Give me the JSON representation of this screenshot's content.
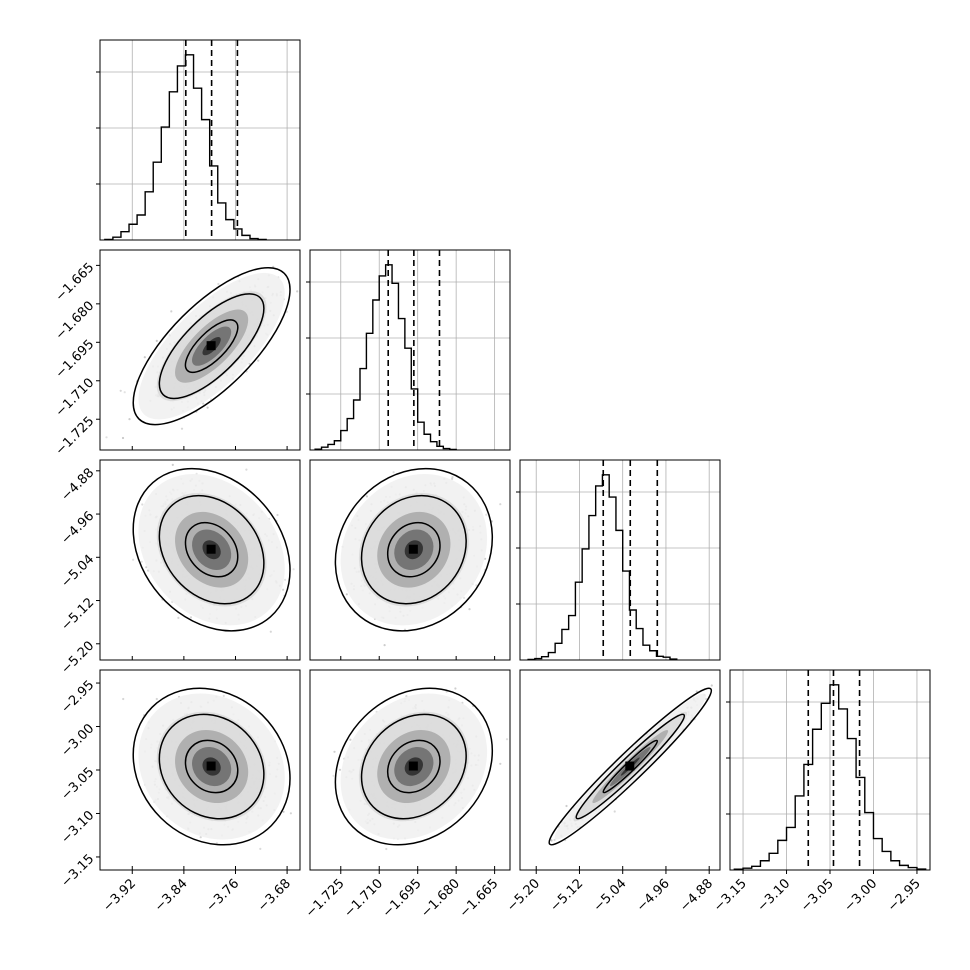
{
  "figure": {
    "name": "corner-plot",
    "background": "#ffffff",
    "line_color": "#000000",
    "grid_color": "#b0b0b0"
  },
  "chart_data": [
    {
      "type": "histogram",
      "panel": "hist-p1",
      "row": 0,
      "col": 0,
      "bins": {
        "start": -3.9625,
        "width": 0.0125,
        "counts": [
          0.3,
          1.5,
          4.5,
          8.5,
          13.5,
          26,
          42,
          61,
          80,
          94,
          100,
          82,
          65,
          40,
          20,
          11,
          6,
          2.5,
          0.8,
          0.3
        ]
      },
      "xlim": [
        -3.97,
        -3.66
      ],
      "ymax": 108,
      "quantiles": [
        -3.837,
        -3.797,
        -3.757
      ],
      "xticks": [
        "-3.92",
        "-3.84",
        "-3.76",
        "-3.68"
      ]
    },
    {
      "type": "histogram",
      "panel": "hist-p2",
      "row": 1,
      "col": 1,
      "bins": {
        "start": -1.735,
        "width": 0.0025,
        "counts": [
          0.4,
          1.5,
          3,
          5,
          10.5,
          17,
          27,
          44,
          63,
          81,
          94,
          100,
          90,
          71,
          55,
          33,
          15,
          8.5,
          4.5,
          2,
          0.8,
          0.3
        ]
      },
      "xlim": [
        -1.737,
        -1.659
      ],
      "ymax": 108,
      "quantiles": [
        -1.7065,
        -1.6965,
        -1.6865
      ],
      "xticks": [
        "-1.725",
        "-1.710",
        "-1.695",
        "-1.680",
        "-1.665"
      ],
      "xlim_shown": [
        -1.737,
        -1.659
      ]
    },
    {
      "type": "histogram",
      "panel": "hist-p3",
      "row": 2,
      "col": 2,
      "bins": {
        "start": -5.215,
        "width": 0.0125,
        "counts": [
          0.3,
          0.8,
          1.8,
          4,
          9,
          16.5,
          24,
          42,
          60,
          78,
          94,
          100,
          88,
          70,
          48,
          27,
          17,
          8,
          5,
          2,
          1.5,
          0.5
        ]
      },
      "xlim": [
        -5.23,
        -4.86
      ],
      "ymax": 108,
      "quantiles": [
        -5.076,
        -5.026,
        -4.976
      ],
      "xticks": [
        "-5.20",
        "-5.12",
        "-5.04",
        "-4.96",
        "-4.88"
      ]
    },
    {
      "type": "histogram",
      "panel": "hist-p4",
      "row": 3,
      "col": 3,
      "bins": {
        "start": -3.16,
        "width": 0.01,
        "counts": [
          0.4,
          1,
          2,
          5,
          9,
          16,
          23,
          40,
          57,
          76,
          90,
          100,
          87,
          71,
          50,
          31,
          17,
          10,
          5,
          2.5,
          1.3,
          0.5
        ]
      },
      "xlim": [
        -3.165,
        -2.935
      ],
      "ymax": 108,
      "quantiles": [
        -3.075,
        -3.046,
        -3.016
      ],
      "xticks": [
        "-3.15",
        "-3.10",
        "-3.05",
        "-3.00",
        "-2.95"
      ]
    },
    {
      "type": "scatter-density",
      "panel": "joint-p1-p2",
      "row": 1,
      "col": 0,
      "x_param": 0,
      "y_param": 1,
      "center": [
        -3.797,
        -1.6965
      ],
      "sd": [
        0.0405,
        0.0102
      ],
      "rho": 0.72,
      "n_points": 900,
      "levels": [
        "39.3%",
        "86.5%",
        "98.9%"
      ]
    },
    {
      "type": "scatter-density",
      "panel": "joint-p1-p3",
      "row": 2,
      "col": 0,
      "x_param": 0,
      "y_param": 2,
      "center": [
        -3.797,
        -5.026
      ],
      "sd": [
        0.0405,
        0.05
      ],
      "rho": -0.25,
      "n_points": 900,
      "levels": [
        "39.3%",
        "86.5%",
        "98.9%"
      ]
    },
    {
      "type": "scatter-density",
      "panel": "joint-p2-p3",
      "row": 2,
      "col": 1,
      "x_param": 1,
      "y_param": 2,
      "center": [
        -1.6965,
        -5.026
      ],
      "sd": [
        0.0102,
        0.05
      ],
      "rho": 0.15,
      "n_points": 900,
      "levels": [
        "39.3%",
        "86.5%",
        "98.9%"
      ]
    },
    {
      "type": "scatter-density",
      "panel": "joint-p1-p4",
      "row": 3,
      "col": 0,
      "x_param": 0,
      "y_param": 3,
      "center": [
        -3.797,
        -3.046
      ],
      "sd": [
        0.0405,
        0.03
      ],
      "rho": -0.15,
      "n_points": 900,
      "levels": [
        "39.3%",
        "86.5%",
        "98.9%"
      ]
    },
    {
      "type": "scatter-density",
      "panel": "joint-p2-p4",
      "row": 3,
      "col": 1,
      "x_param": 1,
      "y_param": 3,
      "center": [
        -1.6965,
        -3.046
      ],
      "sd": [
        0.0102,
        0.03
      ],
      "rho": 0.2,
      "n_points": 900,
      "levels": [
        "39.3%",
        "86.5%",
        "98.9%"
      ]
    },
    {
      "type": "scatter-density",
      "panel": "joint-p3-p4",
      "row": 3,
      "col": 2,
      "x_param": 2,
      "y_param": 3,
      "center": [
        -5.026,
        -3.046
      ],
      "sd": [
        0.05,
        0.03
      ],
      "rho": 0.97,
      "n_points": 900,
      "levels": [
        "39.3%",
        "86.5%",
        "98.9%"
      ]
    }
  ],
  "axes": {
    "params": [
      {
        "lim": [
          -3.97,
          -3.66
        ],
        "ticks": [
          "-3.92",
          "-3.84",
          "-3.76",
          "-3.68"
        ]
      },
      {
        "lim": [
          -1.737,
          -1.659
        ],
        "ticks": [
          "-1.725",
          "-1.710",
          "-1.695",
          "-1.680",
          "-1.665"
        ]
      },
      {
        "lim": [
          -5.23,
          -4.86
        ],
        "ticks": [
          "-5.20",
          "-5.12",
          "-5.04",
          "-4.96",
          "-4.88"
        ]
      },
      {
        "lim": [
          -3.165,
          -2.935
        ],
        "ticks": [
          "-3.15",
          "-3.10",
          "-3.05",
          "-3.00",
          "-2.95"
        ]
      }
    ],
    "grid": true
  }
}
